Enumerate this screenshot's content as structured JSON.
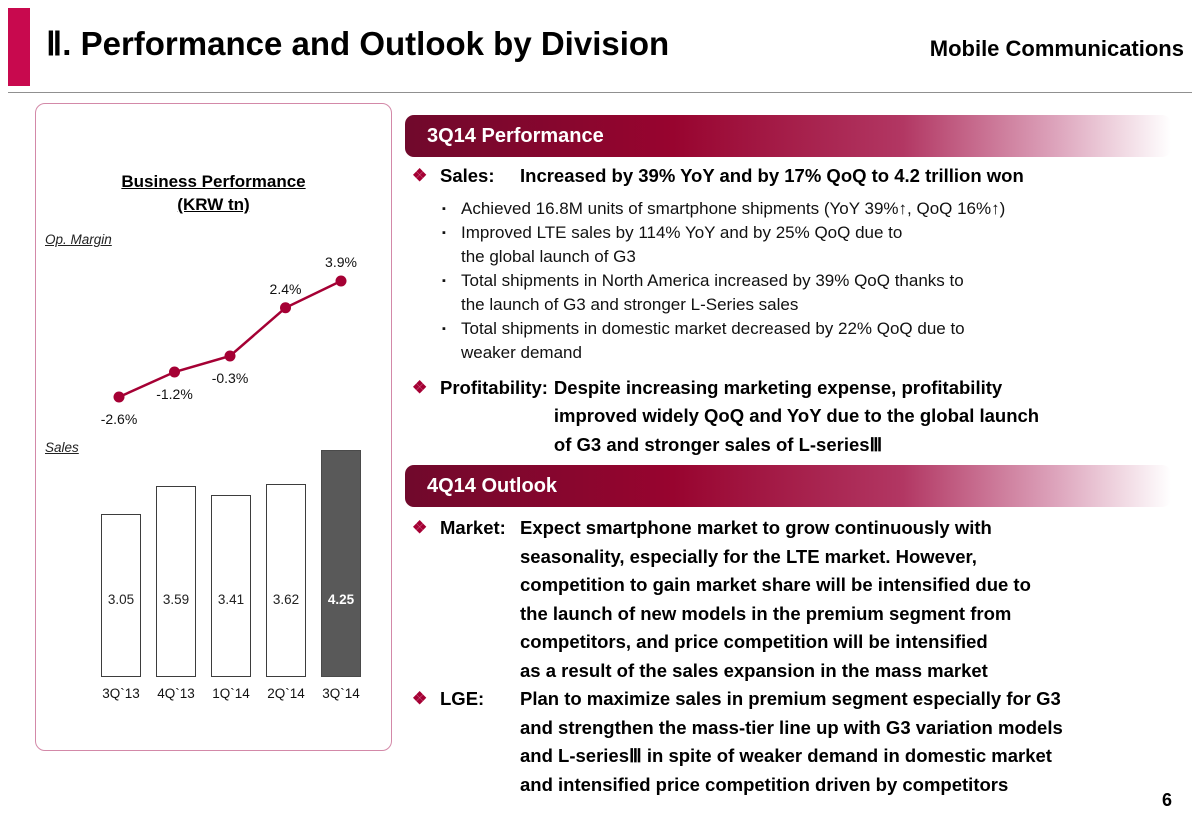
{
  "header": {
    "title": "Ⅱ. Performance and Outlook by Division",
    "division": "Mobile Communications"
  },
  "icons": {
    "diamond_bullet": "❖",
    "square_bullet": "▪"
  },
  "left_panel": {
    "title_line1": "Business Performance",
    "title_line2": "(KRW tn)",
    "op_margin_label": "Op. Margin",
    "sales_label": "Sales"
  },
  "sections": [
    {
      "header": "3Q14 Performance",
      "bullets": [
        {
          "label": "Sales:",
          "text": "Increased by 39% YoY and by 17% QoQ to 4.2 trillion won"
        },
        {
          "label": "Profitability:",
          "text": "Despite increasing marketing expense, profitability\nimproved widely QoQ and YoY due to the global launch\nof G3 and stronger sales of L-seriesⅢ"
        }
      ],
      "sub_bullets": [
        "Achieved 16.8M units of smartphone shipments (YoY 39%↑, QoQ 16%↑)",
        "Improved LTE sales by 114% YoY and by 25% QoQ due to\nthe global launch of G3",
        "Total shipments in North America increased by 39% QoQ thanks to\nthe launch of G3 and stronger L-Series sales",
        "Total shipments in domestic market decreased by 22% QoQ due to\nweaker demand"
      ]
    },
    {
      "header": "4Q14 Outlook",
      "bullets": [
        {
          "label": "Market:",
          "text": "Expect smartphone market to grow continuously with\nseasonality, especially for the LTE market. However,\ncompetition to gain market share will be intensified due to\nthe launch of new models in the premium segment from\ncompetitors, and price competition will be intensified\nas a result of the sales expansion in the mass market"
        },
        {
          "label": "LGE:",
          "text": "Plan to maximize sales in premium segment especially for G3\nand strengthen the mass-tier line up with G3 variation models\nand L-seriesⅢ in spite of weaker demand in domestic market\nand intensified price competition driven by competitors"
        }
      ]
    }
  ],
  "chart_data": [
    {
      "type": "line",
      "title": "Op. Margin",
      "unit": "%",
      "categories": [
        "3Q`13",
        "4Q`13",
        "1Q`14",
        "2Q`14",
        "3Q`14"
      ],
      "values": [
        -2.6,
        -1.2,
        -0.3,
        2.4,
        3.9
      ],
      "labels": [
        "-2.6%",
        "-1.2%",
        "-0.3%",
        "2.4%",
        "3.9%"
      ],
      "color": "#A50034",
      "grid": false,
      "legend": false
    },
    {
      "type": "bar",
      "title": "Sales",
      "unit": "KRW tn",
      "categories": [
        "3Q`13",
        "4Q`13",
        "1Q`14",
        "2Q`14",
        "3Q`14"
      ],
      "values": [
        3.05,
        3.59,
        3.41,
        3.62,
        4.25
      ],
      "labels": [
        "3.05",
        "3.59",
        "3.41",
        "3.62",
        "4.25"
      ],
      "highlight_index": 4,
      "bar_fill": "#ffffff",
      "bar_border": "#3d3d3d",
      "highlight_fill": "#595959",
      "grid": false,
      "legend": false
    }
  ],
  "colors": {
    "accent_bar": "#C8094E",
    "brand": "#A50034",
    "section_header_text": "#ffffff",
    "highlight_bar": "#595959"
  },
  "page_number": "6"
}
